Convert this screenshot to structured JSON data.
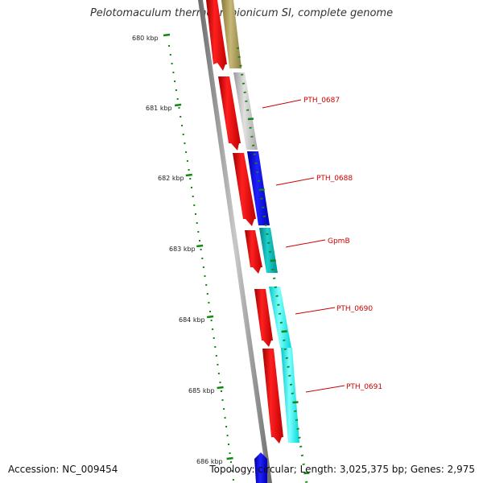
{
  "title": "Pelotomaculum thermopropionicum SI, complete genome",
  "footer": {
    "accession": "Accession: NC_009454",
    "summary": "Topology: circular; Length: 3,025,375 bp; Genes: 2,975"
  },
  "ruler": {
    "ticks": [
      "680 kbp",
      "681 kbp",
      "682 kbp",
      "683 kbp",
      "684 kbp",
      "685 kbp",
      "686 kbp"
    ]
  },
  "genes": [
    {
      "label": "PTH_0687",
      "color": "#c0c0c0"
    },
    {
      "label": "PTH_0688",
      "color": "#0000ee"
    },
    {
      "label": "GpmB",
      "color": "#00b5b5"
    },
    {
      "label": "PTH_0690",
      "color": "#00ffff"
    },
    {
      "label": "PTH_0691",
      "color": "#00ffff"
    }
  ],
  "colors": {
    "cds_forward": "#ee0000",
    "ruler": "#118811",
    "backbone": "#808080",
    "label": "#cc0000",
    "olive_gene": "#a89a55",
    "blue_gene": "#0000ee"
  }
}
